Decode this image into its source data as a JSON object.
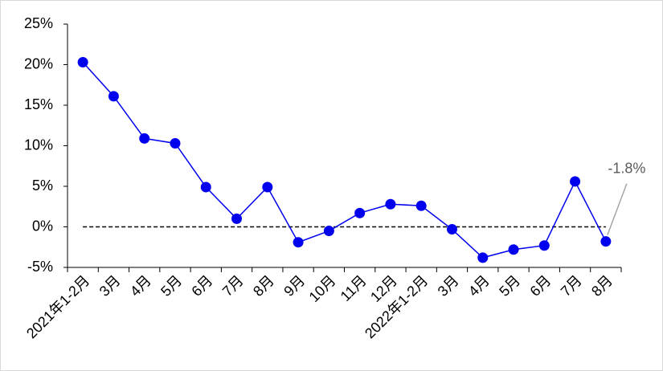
{
  "chart_data": {
    "type": "line",
    "categories": [
      "2021年1-2月",
      "3月",
      "4月",
      "5月",
      "6月",
      "7月",
      "8月",
      "9月",
      "10月",
      "11月",
      "12月",
      "2022年1-2月",
      "3月",
      "4月",
      "5月",
      "6月",
      "7月",
      "8月"
    ],
    "series": [
      {
        "name": "增速",
        "color": "#0000ee",
        "values": [
          20.3,
          16.1,
          10.9,
          10.3,
          4.9,
          1.0,
          4.9,
          -1.9,
          -0.5,
          1.7,
          2.8,
          2.6,
          -0.3,
          -3.8,
          -2.8,
          -2.3,
          5.6,
          -1.8
        ],
        "value_labels": [
          null,
          null,
          null,
          null,
          null,
          null,
          null,
          null,
          null,
          null,
          null,
          null,
          null,
          null,
          null,
          null,
          null,
          "-1.8%"
        ]
      }
    ],
    "ylim": [
      -5,
      25
    ],
    "yticks": [
      {
        "value": -5,
        "label": "-5%"
      },
      {
        "value": 0,
        "label": "0%"
      },
      {
        "value": 5,
        "label": "5%"
      },
      {
        "value": 10,
        "label": "10%"
      },
      {
        "value": 15,
        "label": "15%"
      },
      {
        "value": 20,
        "label": "20%"
      },
      {
        "value": 25,
        "label": "25%"
      }
    ],
    "reference_line": 0
  }
}
